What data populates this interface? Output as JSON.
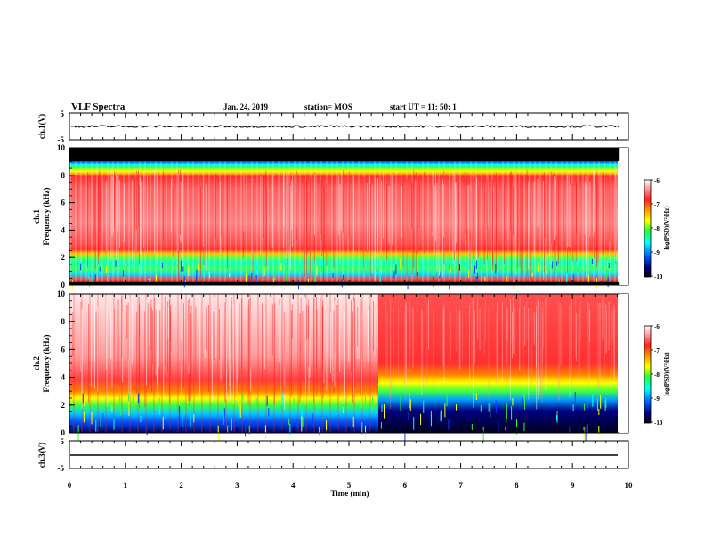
{
  "header": {
    "title": "VLF Spectra",
    "date": "Jan. 24, 2019",
    "station": "station= MOS",
    "start": "start  UT  =   11: 50: 1"
  },
  "panels": {
    "ch1_voltage": {
      "ylabel": "ch.1(V)",
      "ticks": [
        "5",
        "-5"
      ]
    },
    "ch1_spectrogram": {
      "ylabel_top": "ch.1",
      "ylabel": "Frequency  (kHz)"
    },
    "ch2_spectrogram": {
      "ylabel_top": "ch.2",
      "ylabel": "Frequency  (kHz)"
    },
    "ch3_voltage": {
      "ylabel": "ch.3(V)",
      "ticks": [
        "5",
        "-5"
      ]
    }
  },
  "colorbar": {
    "label": "log(PSD)(V²/Hz)",
    "ticks": [
      "-6",
      "-7",
      "-8",
      "-9",
      "-10"
    ],
    "colors": [
      "#ffffff",
      "#ff2020",
      "#ffa000",
      "#ffff00",
      "#30ff30",
      "#00ffff",
      "#0060ff",
      "#000080",
      "#000000"
    ]
  },
  "chart_data": {
    "type": "heatmap",
    "xlabel": "Time  (min)",
    "xlim": [
      0,
      10
    ],
    "x_ticks": [
      "0",
      "1",
      "2",
      "3",
      "4",
      "5",
      "6",
      "7",
      "8",
      "9",
      "10"
    ],
    "data_end_min": 9.83,
    "channels": [
      {
        "name": "ch.1",
        "ylim": [
          0,
          10
        ],
        "y_ticks": [
          "0",
          "2",
          "4",
          "6",
          "8",
          "10"
        ],
        "color_range": [
          -10,
          -6
        ],
        "bands": [
          {
            "freq_khz": [
              0,
              0.3
            ],
            "log_psd": -8.5
          },
          {
            "freq_khz": [
              0.3,
              2.5
            ],
            "log_psd": -8.3
          },
          {
            "freq_khz": [
              2.5,
              7.8
            ],
            "log_psd": -6.8
          },
          {
            "freq_khz": [
              7.8,
              9.0
            ],
            "log_psd": -8.0
          },
          {
            "freq_khz": [
              9.0,
              10
            ],
            "log_psd": -10
          }
        ]
      },
      {
        "name": "ch.2",
        "ylim": [
          0,
          10
        ],
        "y_ticks": [
          "0",
          "2",
          "4",
          "6",
          "8",
          "10"
        ],
        "color_range": [
          -10,
          -6
        ],
        "bands": [
          {
            "freq_khz": [
              0,
              2.3
            ],
            "log_psd": -8.8
          },
          {
            "freq_khz": [
              2.3,
              3.8
            ],
            "log_psd": -7.5
          },
          {
            "freq_khz": [
              3.8,
              10
            ],
            "log_psd": -6.3
          }
        ],
        "change_time_min": 5.5
      }
    ],
    "voltage_traces": [
      {
        "name": "ch.1(V)",
        "ylim": [
          -5,
          5
        ],
        "level_v": 0
      },
      {
        "name": "ch.3(V)",
        "ylim": [
          -5,
          5
        ],
        "level_v": 0
      }
    ]
  }
}
